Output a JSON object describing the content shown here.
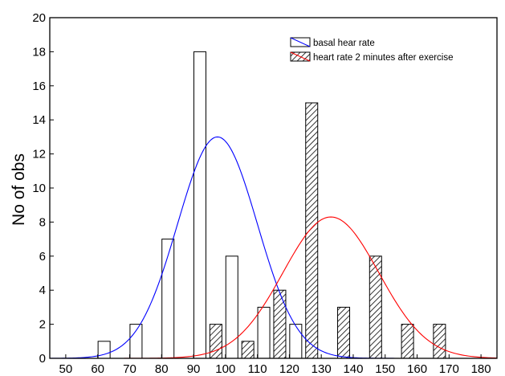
{
  "chart_data": {
    "type": "bar",
    "xlabel": "",
    "ylabel": "No of obs",
    "xlim": [
      45,
      185
    ],
    "ylim": [
      0,
      20
    ],
    "x_ticks": [
      50,
      60,
      70,
      80,
      90,
      100,
      110,
      120,
      130,
      140,
      150,
      160,
      170,
      180
    ],
    "y_ticks": [
      0,
      2,
      4,
      6,
      8,
      10,
      12,
      14,
      16,
      18,
      20
    ],
    "grid": false,
    "legend_position": "top-right",
    "series": [
      {
        "name": "basal hear rate",
        "style": "open",
        "line_color": "#0000ff",
        "x": [
          62,
          72,
          82,
          92,
          102,
          112,
          122,
          132
        ],
        "values": [
          1,
          2,
          7,
          18,
          6,
          3,
          2,
          0
        ]
      },
      {
        "name": "heart rate 2 minutes after exercise",
        "style": "hatched",
        "line_color": "#ff0000",
        "x": [
          97,
          107,
          117,
          127,
          137,
          147,
          157,
          167
        ],
        "values": [
          2,
          1,
          4,
          15,
          3,
          6,
          2,
          2
        ]
      }
    ],
    "curves": [
      {
        "series": "basal hear rate",
        "mean": 97.5,
        "sd": 12.5,
        "peak": 13
      },
      {
        "series": "heart rate 2 minutes after exercise",
        "mean": 133,
        "sd": 15,
        "peak": 8.3
      }
    ]
  }
}
